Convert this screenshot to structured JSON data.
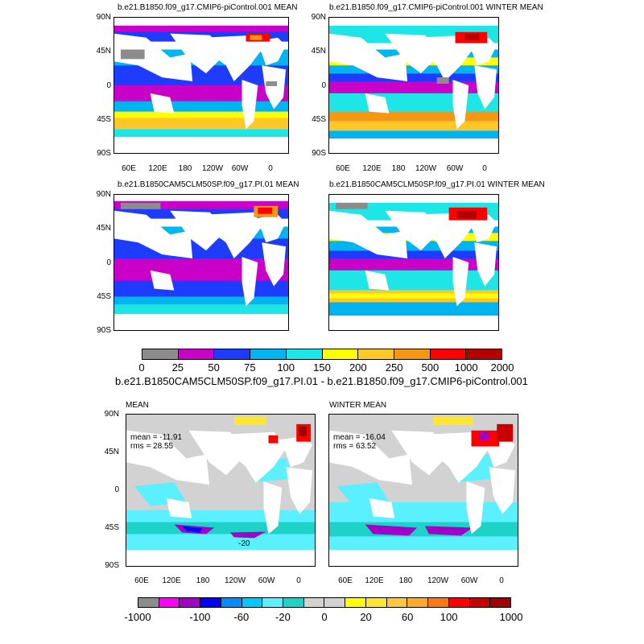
{
  "panels": [
    {
      "title": "b.e21.B1850.f09_g17.CMIP6-piControl.001 MEAN"
    },
    {
      "title": "b.e21.B1850.f09_g17.CMIP6-piControl.001 WINTER MEAN"
    },
    {
      "title": "b.e21.B1850CAM5CLM50SP.f09_g17.PI.01 MEAN"
    },
    {
      "title": "b.e21.B1850CAM5CLM50SP.f09_g17.PI.01 WINTER MEAN"
    }
  ],
  "diff_title": "b.e21.B1850CAM5CLM50SP.f09_g17.PI.01 - b.e21.B1850.f09_g17.CMIP6-piControl.001",
  "diff_panels": [
    {
      "title": "MEAN",
      "mean": "mean = -11.91",
      "rms": "rms = 28.55",
      "contour_label": "-20"
    },
    {
      "title": "WINTER MEAN",
      "mean": "mean = -16.04",
      "rms": "rms = 63.52"
    }
  ],
  "lat_labels": [
    "90N",
    "45N",
    "0",
    "45S",
    "90S"
  ],
  "lon_labels": [
    "60E",
    "120E",
    "180",
    "120W",
    "60W",
    "0"
  ],
  "legend_top": {
    "labels": [
      "0",
      "25",
      "50",
      "75",
      "100",
      "150",
      "200",
      "250",
      "500",
      "1000",
      "2000"
    ],
    "colors": [
      "#8c8c8c",
      "#c800c8",
      "#1e3cff",
      "#00b4f0",
      "#1ee6e6",
      "#ffff00",
      "#ffc828",
      "#f59614",
      "#ff0000",
      "#b40000"
    ]
  },
  "legend_bottom": {
    "labels": [
      "-1000",
      "-100",
      "-60",
      "-20",
      "0",
      "20",
      "60",
      "100",
      "1000"
    ],
    "colors": [
      "#8c8c8c",
      "#ff00ff",
      "#a000c8",
      "#0000ff",
      "#008cff",
      "#00c8ff",
      "#5af0ff",
      "#1ed2c8",
      "#d2d2d2",
      "#d2d2d2",
      "#ffff00",
      "#ffe632",
      "#ffc83c",
      "#ffaa28",
      "#ff7814",
      "#ff0000",
      "#c80000",
      "#a00000"
    ]
  }
}
